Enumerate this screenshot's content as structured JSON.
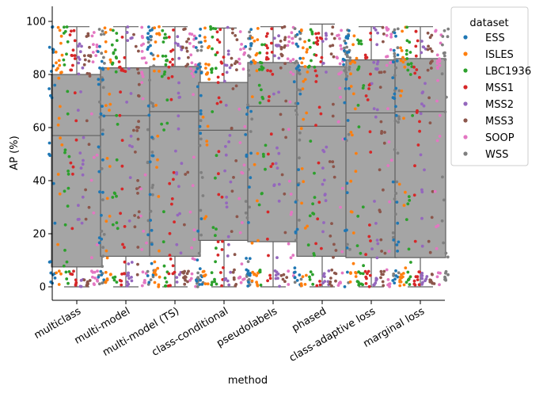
{
  "chart_data": {
    "type": "box",
    "overlay": "strip",
    "xlabel": "method",
    "ylabel": "AP (%)",
    "ylim": [
      -4,
      105
    ],
    "yticks": [
      0,
      20,
      40,
      60,
      80,
      100
    ],
    "grid": false,
    "legend_position": "outside-top-right",
    "categories": [
      "multiclass",
      "multi-model",
      "multi-model (TS)",
      "class-conditional",
      "pseudolabels",
      "phased",
      "class-adaptive loss",
      "marginal loss"
    ],
    "boxes": [
      {
        "category": "multiclass",
        "q1": 7.5,
        "median": 57,
        "q3": 80,
        "whisker_low": 0,
        "whisker_high": 98
      },
      {
        "category": "multi-model",
        "q1": 11.5,
        "median": 64.5,
        "q3": 82.5,
        "whisker_low": 0,
        "whisker_high": 98
      },
      {
        "category": "multi-model (TS)",
        "q1": 11.5,
        "median": 66,
        "q3": 83,
        "whisker_low": 0,
        "whisker_high": 98
      },
      {
        "category": "class-conditional",
        "q1": 17.5,
        "median": 59,
        "q3": 77,
        "whisker_low": 0,
        "whisker_high": 97.5
      },
      {
        "category": "pseudolabels",
        "q1": 17,
        "median": 68,
        "q3": 84.5,
        "whisker_low": 0,
        "whisker_high": 98
      },
      {
        "category": "phased",
        "q1": 11.5,
        "median": 60.5,
        "q3": 83,
        "whisker_low": 0,
        "whisker_high": 99
      },
      {
        "category": "class-adaptive loss",
        "q1": 11,
        "median": 65.5,
        "q3": 85.5,
        "whisker_low": 0,
        "whisker_high": 98
      },
      {
        "category": "marginal loss",
        "q1": 11,
        "median": 66,
        "q3": 86,
        "whisker_low": 0,
        "whisker_high": 98
      }
    ],
    "legend_title": "dataset",
    "series": [
      {
        "name": "ESS",
        "color": "#1f77b4"
      },
      {
        "name": "ISLES",
        "color": "#ff7f0e"
      },
      {
        "name": "LBC1936",
        "color": "#2ca02c"
      },
      {
        "name": "MSS1",
        "color": "#d62728"
      },
      {
        "name": "MSS2",
        "color": "#9467bd"
      },
      {
        "name": "MSS3",
        "color": "#8c564b"
      },
      {
        "name": "SOOP",
        "color": "#e377c2"
      },
      {
        "name": "WSS",
        "color": "#7f7f7f"
      }
    ],
    "box_color": "#a5a5a5",
    "box_edge_color": "#5f5f5f"
  }
}
